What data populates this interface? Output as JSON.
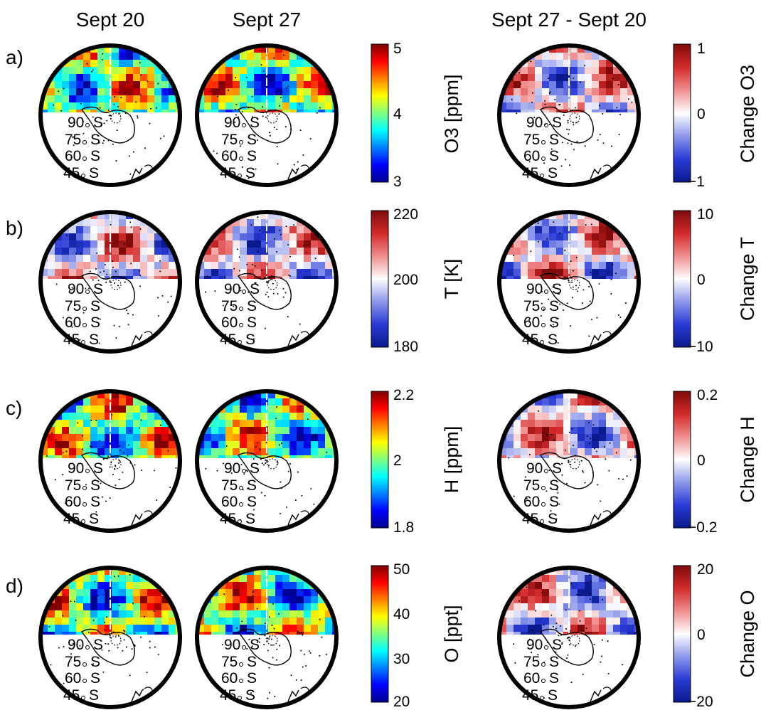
{
  "figure": {
    "column_titles": [
      "Sept 20",
      "Sept 27",
      "Sept 27 - Sept 20"
    ],
    "lat_labels": [
      "90",
      "S",
      "75",
      "S",
      "60",
      "S",
      "45",
      "S"
    ]
  },
  "rows": [
    {
      "tag": "a)",
      "variable": "O3",
      "abs_label": "O3 [ppm]",
      "abs_ticks": [
        "5",
        "4",
        "3"
      ],
      "diff_label": "Change O3",
      "diff_ticks": [
        "1",
        "0",
        "−1"
      ]
    },
    {
      "tag": "b)",
      "variable": "T",
      "abs_label": "T [K]",
      "abs_ticks": [
        "220",
        "200",
        "180"
      ],
      "diff_label": "Change T",
      "diff_ticks": [
        "10",
        "0",
        "−10"
      ]
    },
    {
      "tag": "c)",
      "variable": "H",
      "abs_label": "H [ppm]",
      "abs_ticks": [
        "2.2",
        "2",
        "1.8"
      ],
      "diff_label": "Change H",
      "diff_ticks": [
        "0.2",
        "0",
        "−0.2"
      ]
    },
    {
      "tag": "d)",
      "variable": "O",
      "abs_label": "O [ppt]",
      "abs_ticks": [
        "50",
        "40",
        "30",
        "20"
      ],
      "diff_label": "Change O",
      "diff_ticks": [
        "20",
        "0",
        "−20"
      ]
    }
  ],
  "colormaps": {
    "jet": [
      "#00008f",
      "#0000ff",
      "#0080ff",
      "#00ffff",
      "#80ff80",
      "#ffff00",
      "#ff8000",
      "#ff0000",
      "#800000"
    ],
    "diverging": [
      "#0a1a8c",
      "#2a3bd6",
      "#8c98ea",
      "#ffffff",
      "#ef8e8e",
      "#d42a2a",
      "#7f0a0a"
    ]
  }
}
